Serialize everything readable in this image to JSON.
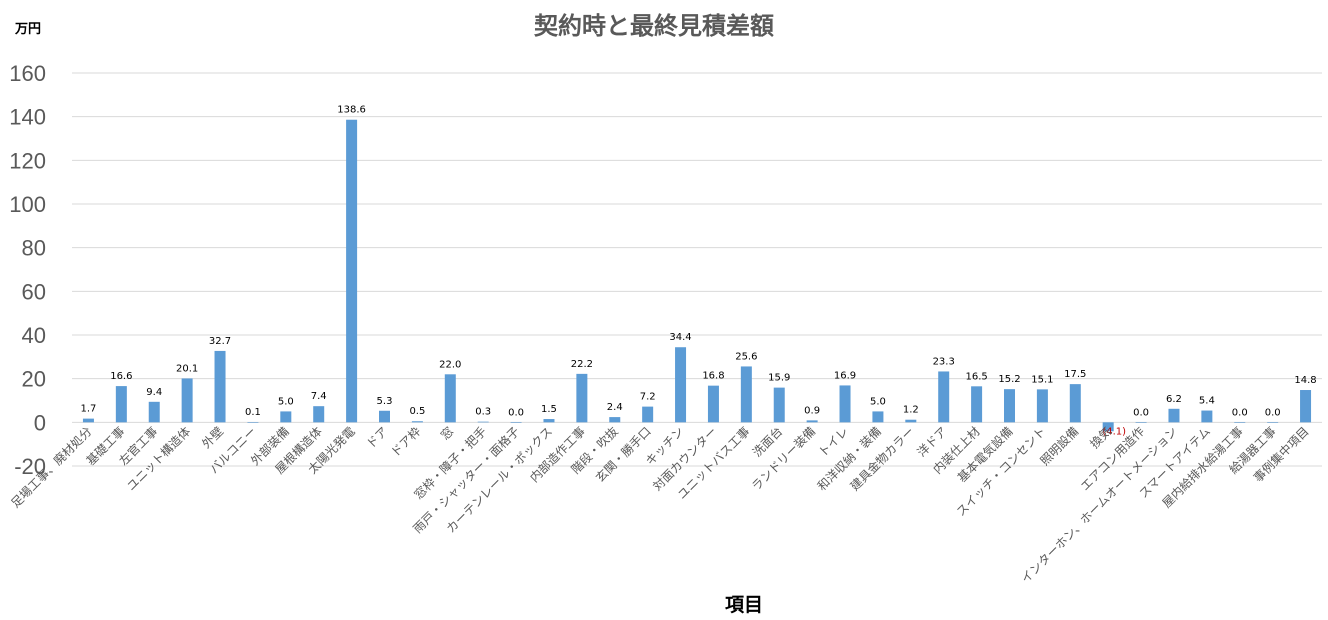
{
  "chart_data": {
    "type": "bar",
    "title": "契約時と最終見積差額",
    "unit_label": "万円",
    "xlabel": "項目",
    "ylabel": "",
    "ylim": [
      -20,
      160
    ],
    "yticks": [
      -20,
      0,
      20,
      40,
      60,
      80,
      100,
      120,
      140,
      160
    ],
    "grid": true,
    "legend": "none",
    "bar_color": "#5b9bd5",
    "negative_label_color": "#c00000",
    "categories": [
      "足場工事、廃材処分",
      "基礎工事",
      "左官工事",
      "ユニット構造体",
      "外壁",
      "バルコニー",
      "外部装備",
      "屋根構造体",
      "太陽光発電",
      "ドア",
      "ドア枠",
      "窓",
      "窓枠・障子・把手",
      "雨戸・シャッター・面格子",
      "カーテンレール・ボックス",
      "内部造作工事",
      "階段・吹抜",
      "玄関・勝手口",
      "キッチン",
      "対面カウンター",
      "ユニットバス工事",
      "洗面台",
      "ランドリー装備",
      "トイレ",
      "和洋収納・装備",
      "建具金物カラー",
      "洋ドア",
      "内装仕上材",
      "基本電気設備",
      "スイッチ・コンセント",
      "照明設備",
      "換気",
      "エアコン用造作",
      "インターホン、ホームオートメーション",
      "スマートアイテム",
      "屋内給排水給湯工事",
      "給湯器工事",
      "事例集中項目"
    ],
    "values": [
      1.7,
      16.6,
      9.4,
      20.1,
      32.7,
      0.1,
      5.0,
      7.4,
      138.6,
      5.3,
      0.5,
      22.0,
      0.3,
      0.0,
      1.5,
      22.2,
      2.4,
      7.2,
      34.4,
      16.8,
      25.6,
      15.9,
      0.9,
      16.9,
      5.0,
      1.2,
      23.3,
      16.5,
      15.2,
      15.1,
      17.5,
      -4.1,
      0.0,
      6.2,
      5.4,
      0.0,
      0.0,
      14.8
    ],
    "data_labels": [
      "1.7",
      "16.6",
      "9.4",
      "20.1",
      "32.7",
      "0.1",
      "5.0",
      "7.4",
      "138.6",
      "5.3",
      "0.5",
      "22.0",
      "0.3",
      "0.0",
      "1.5",
      "22.2",
      "2.4",
      "7.2",
      "34.4",
      "16.8",
      "25.6",
      "15.9",
      "0.9",
      "16.9",
      "5.0",
      "1.2",
      "23.3",
      "16.5",
      "15.2",
      "15.1",
      "17.5",
      "(4.1)",
      "0.0",
      "6.2",
      "5.4",
      "0.0",
      "0.0",
      "14.8"
    ]
  }
}
